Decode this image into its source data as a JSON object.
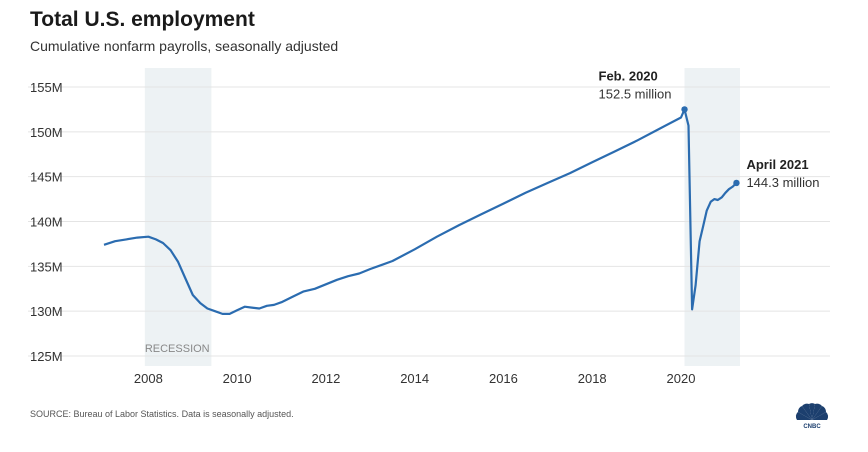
{
  "header": {
    "title": "Total U.S. employment",
    "subtitle": "Cumulative nonfarm payrolls, seasonally adjusted"
  },
  "footer": {
    "source": "SOURCE: Bureau of Labor Statistics. Data is seasonally adjusted.",
    "logo_text": "CNBC"
  },
  "colors": {
    "line": "#2b6cb0",
    "recession_band": "#edf2f4",
    "grid": "#e4e4e4"
  },
  "chart_data": {
    "type": "line",
    "title": "Total U.S. employment",
    "subtitle": "Cumulative nonfarm payrolls, seasonally adjusted",
    "xlim": [
      2007,
      2021.33
    ],
    "ylim": [
      125,
      155
    ],
    "x_ticks": [
      2008,
      2010,
      2012,
      2014,
      2016,
      2018,
      2020
    ],
    "x_tick_labels": [
      "2008",
      "2010",
      "2012",
      "2014",
      "2016",
      "2018",
      "2020"
    ],
    "y_ticks": [
      125,
      130,
      135,
      140,
      145,
      150,
      155
    ],
    "y_tick_labels": [
      "125M",
      "130M",
      "135M",
      "140M",
      "145M",
      "150M",
      "155M"
    ],
    "grid": true,
    "shaded_regions": [
      {
        "start": 2007.92,
        "end": 2009.42,
        "label": "RECESSION"
      },
      {
        "start": 2020.08,
        "end": 2021.33,
        "label": ""
      }
    ],
    "annotations": [
      {
        "x": 2020.08,
        "y": 152.5,
        "title": "Feb. 2020",
        "text": "152.5 million"
      },
      {
        "x": 2021.25,
        "y": 144.3,
        "title": "April 2021",
        "text": "144.3 million"
      }
    ],
    "series": [
      {
        "x": [
          2007.0,
          2007.25,
          2007.5,
          2007.75,
          2008.0,
          2008.17,
          2008.33,
          2008.5,
          2008.67,
          2008.83,
          2009.0,
          2009.17,
          2009.33,
          2009.5,
          2009.67,
          2009.83,
          2010.0,
          2010.17,
          2010.33,
          2010.5,
          2010.67,
          2010.83,
          2011.0,
          2011.25,
          2011.5,
          2011.75,
          2012.0,
          2012.25,
          2012.5,
          2012.75,
          2013.0,
          2013.5,
          2014.0,
          2014.5,
          2015.0,
          2015.5,
          2016.0,
          2016.5,
          2017.0,
          2017.5,
          2018.0,
          2018.5,
          2019.0,
          2019.5,
          2020.0,
          2020.08,
          2020.17,
          2020.25,
          2020.33,
          2020.42,
          2020.5,
          2020.58,
          2020.67,
          2020.75,
          2020.83,
          2020.92,
          2021.0,
          2021.08,
          2021.17,
          2021.25
        ],
        "values": [
          137.4,
          137.8,
          138.0,
          138.2,
          138.3,
          138.0,
          137.6,
          136.8,
          135.5,
          133.7,
          131.8,
          130.9,
          130.3,
          130.0,
          129.7,
          129.7,
          130.1,
          130.5,
          130.4,
          130.3,
          130.6,
          130.7,
          131.0,
          131.6,
          132.2,
          132.5,
          133.0,
          133.5,
          133.9,
          134.2,
          134.7,
          135.6,
          136.9,
          138.3,
          139.6,
          140.8,
          142.0,
          143.2,
          144.3,
          145.4,
          146.6,
          147.8,
          149.0,
          150.3,
          151.6,
          152.5,
          150.7,
          130.2,
          132.9,
          137.8,
          139.5,
          141.2,
          142.2,
          142.5,
          142.4,
          142.7,
          143.2,
          143.6,
          143.9,
          144.3
        ]
      }
    ]
  }
}
